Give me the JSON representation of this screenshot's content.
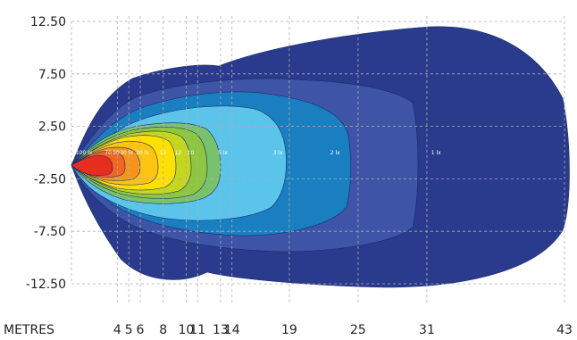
{
  "chart_data": {
    "type": "heatmap",
    "title": "",
    "xlabel": "METRES",
    "ylabel": "",
    "x_ticks": [
      4,
      5,
      6,
      8,
      10,
      11,
      13,
      14,
      19,
      25,
      31,
      43
    ],
    "x_tick_labels": [
      "4",
      "5",
      "6",
      "8",
      "10",
      "11",
      "13",
      "14",
      "19",
      "25",
      "31",
      "43"
    ],
    "y_ticks": [
      12.5,
      7.5,
      2.5,
      -2.5,
      -7.5,
      -12.5
    ],
    "y_tick_labels": [
      "12.50",
      "7.50",
      "2.50",
      "-2.50",
      "-7.50",
      "-12.50"
    ],
    "xlim": [
      0,
      43
    ],
    "ylim": [
      -12.5,
      12.5
    ],
    "grid": "dashed",
    "isolux_levels": [
      {
        "lux": 1,
        "label": "1 lx",
        "color": "#2a3a8c",
        "label_x": 31.8
      },
      {
        "lux": 2,
        "label": "2 lx",
        "color": "#3d54a7",
        "label_x": 23.0
      },
      {
        "lux": 3,
        "label": "3 lx",
        "color": "#1a7fc0",
        "label_x": 18.0
      },
      {
        "lux": 5,
        "label": "5 lx",
        "color": "#5bc4ea",
        "label_x": 13.2
      },
      {
        "lux": 10,
        "label": "10",
        "color": "#78c26e",
        "label_x": 10.4
      },
      {
        "lux": 12,
        "label": "12",
        "color": "#8ec63f",
        "label_x": 9.3
      },
      {
        "lux": 15,
        "label": "15",
        "color": "#c4d61f",
        "label_x": 8.0
      },
      {
        "lux": 20,
        "label": "20 lx",
        "color": "#ffe000",
        "label_x": 6.2
      },
      {
        "lux": 30,
        "label": "30 lx",
        "color": "#fcc40f",
        "label_x": 4.8
      },
      {
        "lux": 50,
        "label": "50",
        "color": "#f7941d",
        "label_x": 3.9
      },
      {
        "lux": 70,
        "label": "70",
        "color": "#f26522",
        "label_x": 3.2
      },
      {
        "lux": 100,
        "label": "100 lx",
        "color": "#e62e1f",
        "label_x": 1.1
      }
    ]
  }
}
